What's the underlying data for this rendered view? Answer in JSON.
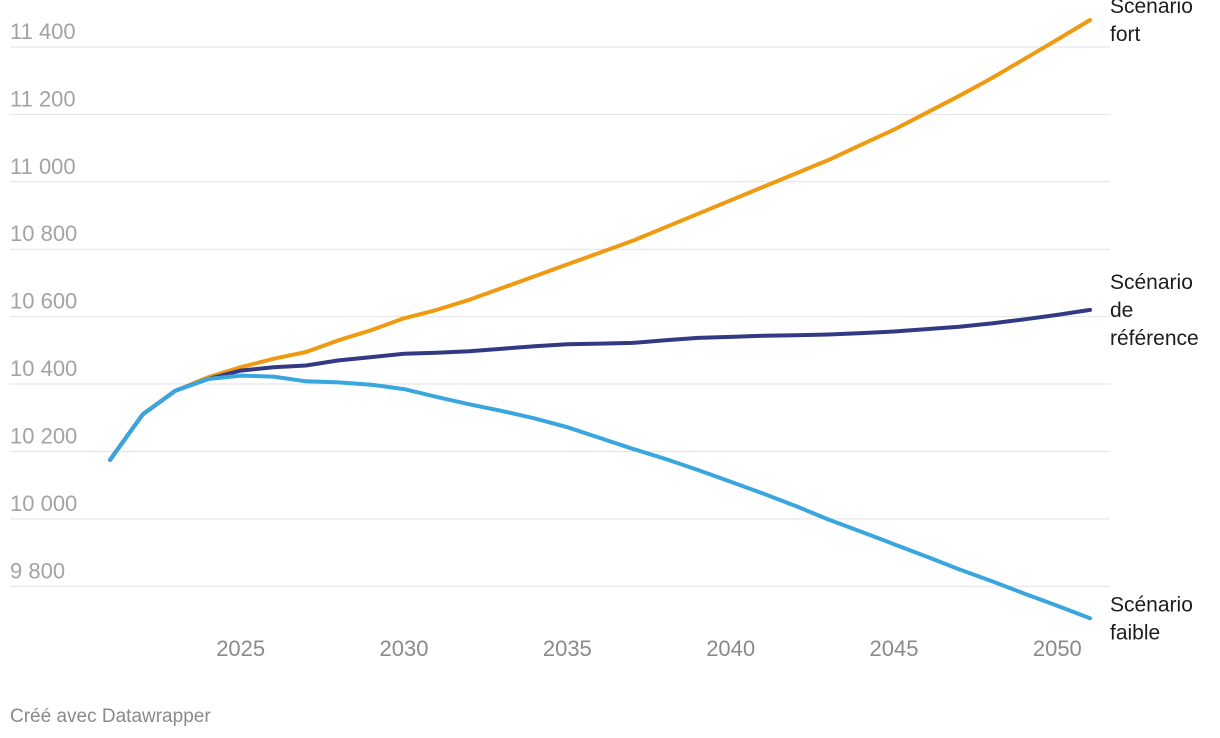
{
  "chart_data": {
    "type": "line",
    "title": "",
    "xlabel": "",
    "ylabel": "",
    "xlim": [
      2021,
      2051
    ],
    "ylim": [
      9700,
      11480
    ],
    "grid": true,
    "y_ticks": [
      9800,
      10000,
      10200,
      10400,
      10600,
      10800,
      11000,
      11200,
      11400
    ],
    "y_tick_labels": [
      "9 800",
      "10 000",
      "10 200",
      "10 400",
      "10 600",
      "10 800",
      "11 000",
      "11 200",
      "11 400"
    ],
    "x_ticks": [
      2025,
      2030,
      2035,
      2040,
      2045,
      2050
    ],
    "x_tick_labels": [
      "2025",
      "2030",
      "2035",
      "2040",
      "2045",
      "2050"
    ],
    "x": [
      2021,
      2022,
      2023,
      2024,
      2025,
      2026,
      2027,
      2028,
      2029,
      2030,
      2031,
      2032,
      2033,
      2034,
      2035,
      2036,
      2037,
      2038,
      2039,
      2040,
      2041,
      2042,
      2043,
      2044,
      2045,
      2046,
      2047,
      2048,
      2049,
      2050,
      2051
    ],
    "series": [
      {
        "name": "Scénario fort",
        "label_lines": [
          "Scénario",
          "fort"
        ],
        "color": "#ef9a10",
        "values": [
          10175,
          10310,
          10380,
          10420,
          10450,
          10475,
          10495,
          10530,
          10560,
          10595,
          10620,
          10650,
          10685,
          10720,
          10755,
          10790,
          10825,
          10865,
          10905,
          10945,
          10985,
          11025,
          11065,
          11110,
          11155,
          11205,
          11255,
          11308,
          11365,
          11422,
          11480
        ]
      },
      {
        "name": "Scénario de référence",
        "label_lines": [
          "Scénario",
          "de",
          "référence"
        ],
        "color": "#323a84",
        "values": [
          10175,
          10310,
          10380,
          10415,
          10440,
          10450,
          10455,
          10470,
          10480,
          10490,
          10493,
          10497,
          10505,
          10512,
          10518,
          10520,
          10522,
          10530,
          10537,
          10540,
          10543,
          10545,
          10547,
          10551,
          10556,
          10563,
          10570,
          10580,
          10592,
          10605,
          10620
        ]
      },
      {
        "name": "Scénario faible",
        "label_lines": [
          "Scénario",
          "faible"
        ],
        "color": "#3aa6de",
        "values": [
          10175,
          10310,
          10380,
          10415,
          10425,
          10422,
          10408,
          10405,
          10398,
          10385,
          10362,
          10340,
          10320,
          10298,
          10272,
          10240,
          10208,
          10178,
          10145,
          10110,
          10075,
          10038,
          9998,
          9962,
          9925,
          9888,
          9850,
          9815,
          9778,
          9742,
          9705
        ]
      }
    ]
  },
  "footer": {
    "credit": "Créé avec Datawrapper"
  }
}
